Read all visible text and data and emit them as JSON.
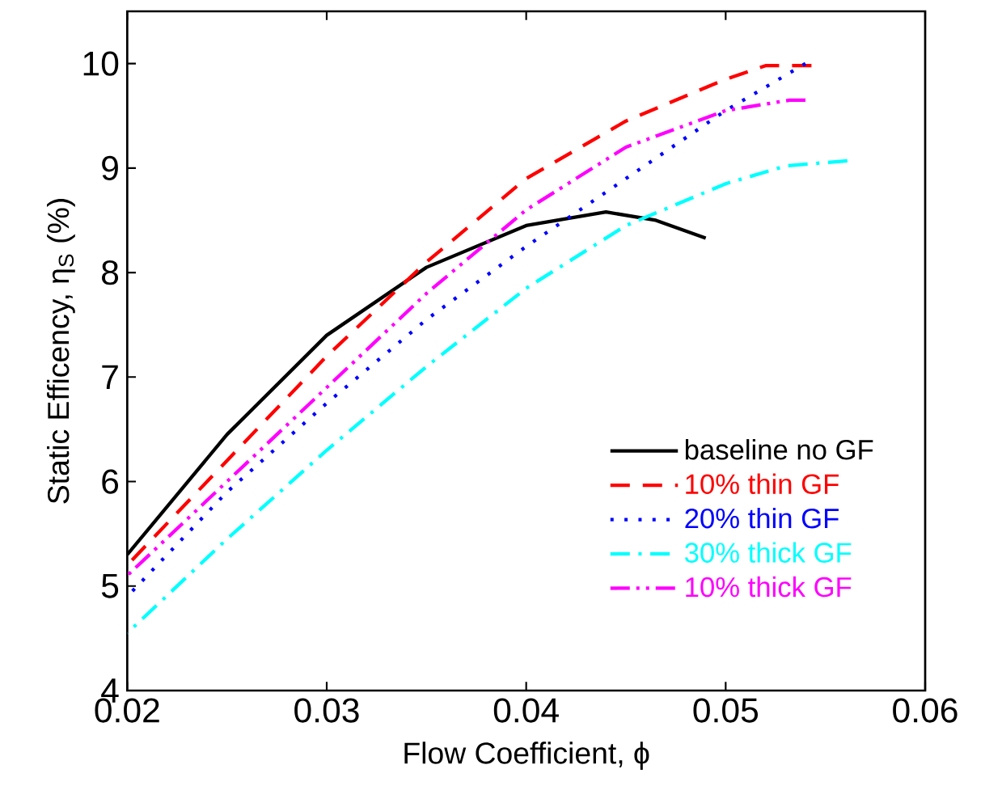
{
  "chart_data": {
    "type": "line",
    "xlabel": "Flow Coefficient, ϕ",
    "ylabel": "Static Efficency, η$_{S}$ (%)",
    "xlim": [
      0.02,
      0.06
    ],
    "ylim": [
      4,
      10.5
    ],
    "xticks": [
      0.02,
      0.03,
      0.04,
      0.05,
      0.06
    ],
    "yticks": [
      4,
      5,
      6,
      7,
      8,
      9,
      10
    ],
    "legend": "bottom right",
    "grid": false,
    "marker": "none",
    "series": [
      {
        "name": "baseline no GF",
        "color": "#000000",
        "line_style": "solid",
        "x": [
          0.02,
          0.025,
          0.03,
          0.035,
          0.04,
          0.044,
          0.0465,
          0.049
        ],
        "values": [
          5.3,
          6.45,
          7.4,
          8.05,
          8.45,
          8.58,
          8.5,
          8.33
        ]
      },
      {
        "name": "10% thin   GF",
        "color": "#ff0000",
        "line_style": "dashed",
        "x": [
          0.02,
          0.025,
          0.03,
          0.035,
          0.04,
          0.045,
          0.05,
          0.052,
          0.0543
        ],
        "values": [
          5.2,
          6.2,
          7.2,
          8.1,
          8.9,
          9.45,
          9.85,
          9.98,
          9.98
        ]
      },
      {
        "name": "20% thin   GF",
        "color": "#0000ff",
        "line_style": "dotted",
        "x": [
          0.02,
          0.025,
          0.03,
          0.035,
          0.04,
          0.045,
          0.05,
          0.054
        ],
        "values": [
          4.9,
          5.9,
          6.75,
          7.55,
          8.25,
          8.9,
          9.55,
          10.0
        ]
      },
      {
        "name": "30% thick GF",
        "color": "#00ffff",
        "line_style": "dashdot",
        "x": [
          0.02,
          0.025,
          0.03,
          0.035,
          0.04,
          0.045,
          0.05,
          0.053,
          0.0561
        ],
        "values": [
          4.55,
          5.45,
          6.3,
          7.1,
          7.85,
          8.45,
          8.85,
          9.02,
          9.07
        ]
      },
      {
        "name": "10% thick GF",
        "color": "#ff00ff",
        "line_style": "dashdotdot",
        "x": [
          0.02,
          0.025,
          0.03,
          0.035,
          0.04,
          0.045,
          0.05,
          0.0532,
          0.054
        ],
        "values": [
          5.1,
          6.0,
          6.9,
          7.8,
          8.6,
          9.2,
          9.55,
          9.65,
          9.65
        ]
      }
    ]
  }
}
